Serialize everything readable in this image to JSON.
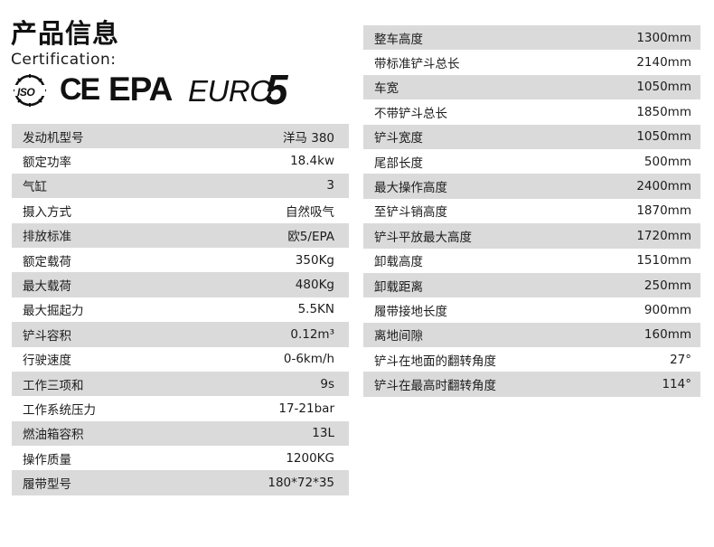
{
  "header": {
    "title": "产品信息",
    "certification_label": "Certification:"
  },
  "certifications": {
    "iso": "ISO",
    "ce": "CE",
    "epa": "EPA",
    "euro": "EURO",
    "euro_number": "5"
  },
  "left_specs": [
    {
      "label": "发动机型号",
      "value": "洋马 380"
    },
    {
      "label": "额定功率",
      "value": "18.4kw"
    },
    {
      "label": "气缸",
      "value": "3"
    },
    {
      "label": "摄入方式",
      "value": "自然吸气"
    },
    {
      "label": "排放标准",
      "value": "欧5/EPA"
    },
    {
      "label": "额定载荷",
      "value": "350Kg"
    },
    {
      "label": "最大载荷",
      "value": "480Kg"
    },
    {
      "label": "最大掘起力",
      "value": "5.5KN"
    },
    {
      "label": "铲斗容积",
      "value": "0.12m³"
    },
    {
      "label": "行驶速度",
      "value": "0-6km/h"
    },
    {
      "label": "工作三项和",
      "value": "9s"
    },
    {
      "label": "工作系统压力",
      "value": "17-21bar"
    },
    {
      "label": "燃油箱容积",
      "value": "13L"
    },
    {
      "label": "操作质量",
      "value": "1200KG"
    },
    {
      "label": "履带型号",
      "value": "180*72*35"
    }
  ],
  "right_specs": [
    {
      "label": "整车高度",
      "value": "1300mm"
    },
    {
      "label": "带标准铲斗总长",
      "value": "2140mm"
    },
    {
      "label": "车宽",
      "value": "1050mm"
    },
    {
      "label": "不带铲斗总长",
      "value": "1850mm"
    },
    {
      "label": "铲斗宽度",
      "value": "1050mm"
    },
    {
      "label": "尾部长度",
      "value": "500mm"
    },
    {
      "label": "最大操作高度",
      "value": "2400mm"
    },
    {
      "label": "至铲斗销高度",
      "value": "1870mm"
    },
    {
      "label": "铲斗平放最大高度",
      "value": "1720mm"
    },
    {
      "label": "卸载高度",
      "value": "1510mm"
    },
    {
      "label": "卸载距离",
      "value": "250mm"
    },
    {
      "label": "履带接地长度",
      "value": "900mm"
    },
    {
      "label": "离地间隙",
      "value": "160mm"
    },
    {
      "label": "铲斗在地面的翻转角度",
      "value": "27°"
    },
    {
      "label": "铲斗在最高时翻转角度",
      "value": "114°"
    }
  ]
}
